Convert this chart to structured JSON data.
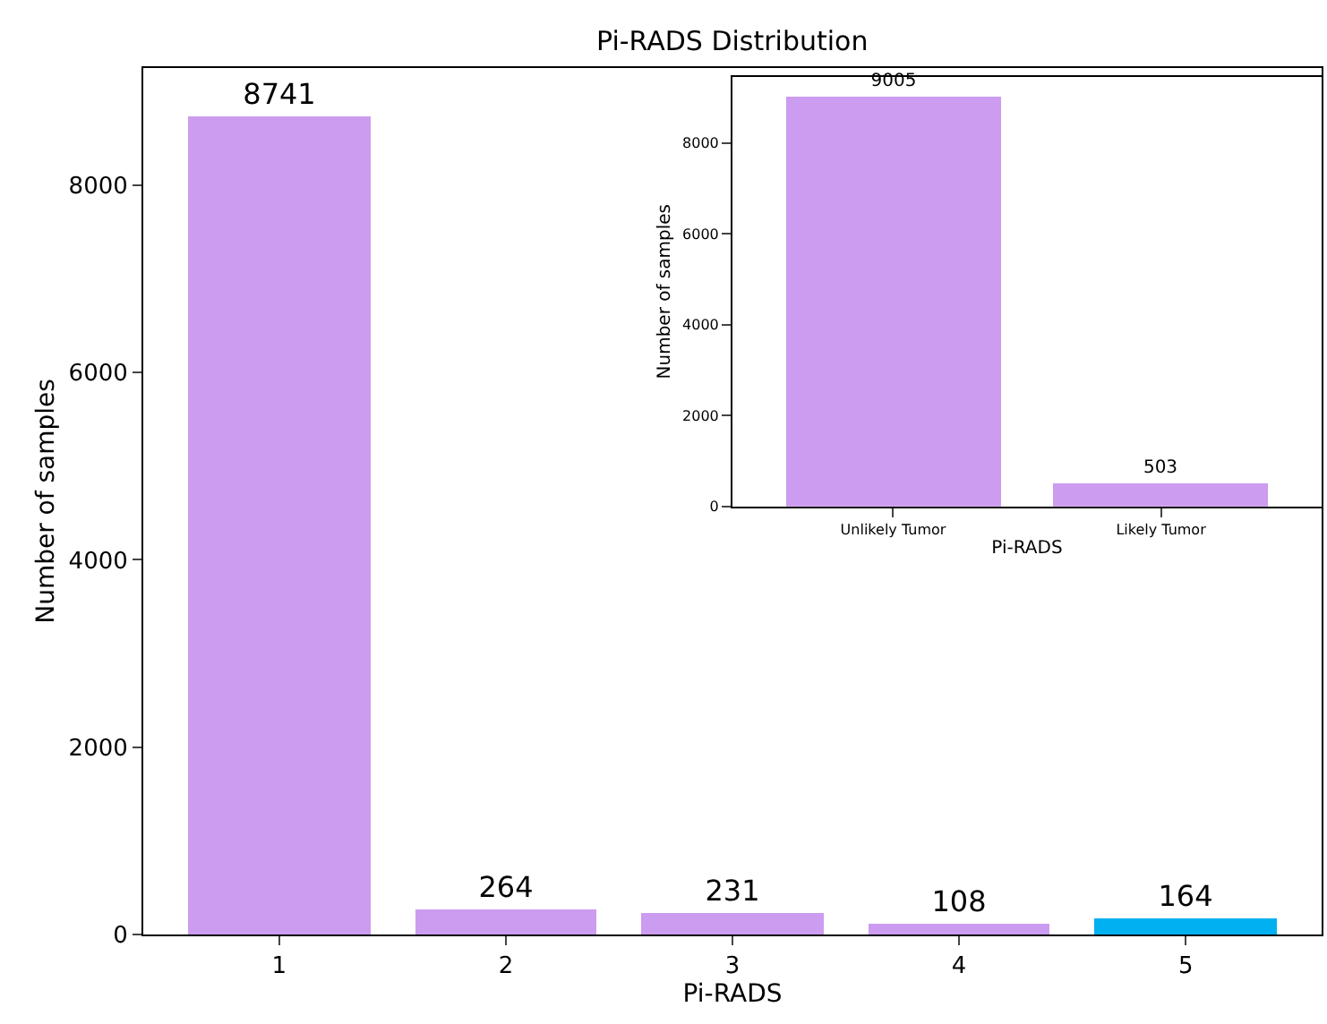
{
  "chart_data": [
    {
      "type": "bar",
      "title": "Pi-RADS Distribution",
      "xlabel": "Pi-RADS",
      "ylabel": "Number of samples",
      "categories": [
        "1",
        "2",
        "3",
        "4",
        "5"
      ],
      "values": [
        8741,
        264,
        231,
        108,
        164
      ],
      "colors": [
        "#cc9cf0",
        "#cc9cf0",
        "#cc9cf0",
        "#cc9cf0",
        "#00b0f0"
      ],
      "ylim": [
        0,
        9250
      ],
      "yticks": [
        0,
        2000,
        4000,
        6000,
        8000
      ],
      "data_labels": true
    },
    {
      "type": "bar",
      "xlabel": "Pi-RADS",
      "ylabel": "Number of samples",
      "categories": [
        "Unlikely Tumor",
        "Likely Tumor"
      ],
      "values": [
        9005,
        503
      ],
      "colors": [
        "#cc9cf0",
        "#cc9cf0"
      ],
      "ylim": [
        0,
        9455
      ],
      "yticks": [
        0,
        2000,
        4000,
        6000,
        8000
      ],
      "data_labels": true
    }
  ]
}
